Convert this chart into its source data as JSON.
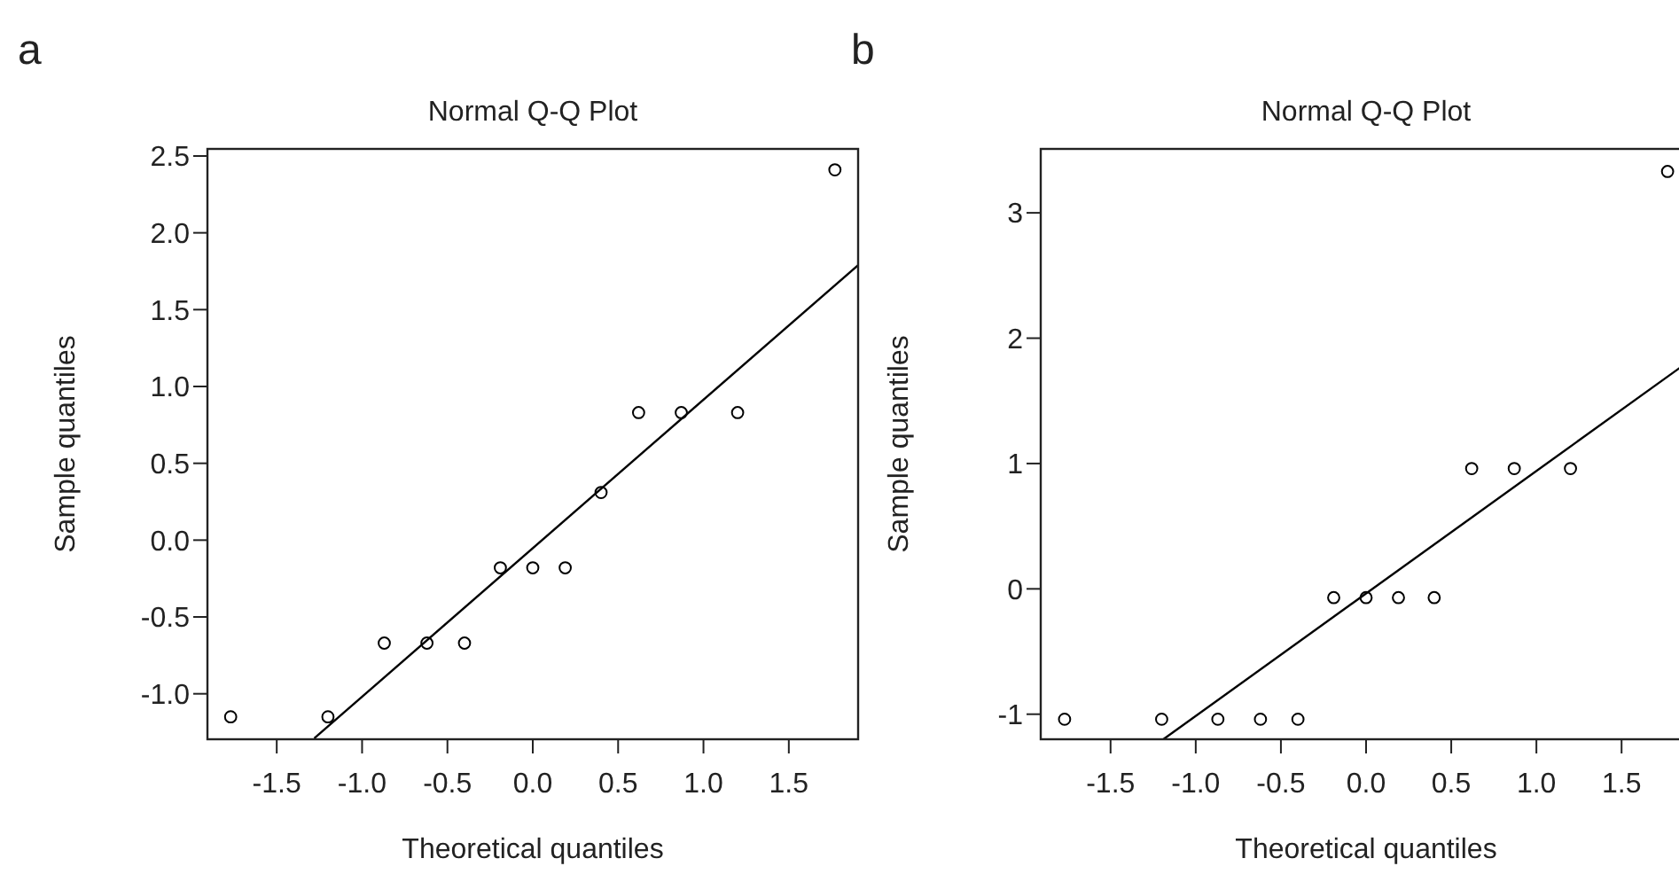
{
  "chart_data": [
    {
      "type": "scatter",
      "title": "Normal Q-Q Plot",
      "xlabel": "Theoretical quantiles",
      "ylabel": "Sample quantiles",
      "annotations": [
        "a"
      ],
      "grid": false,
      "marker": "circle",
      "xlim": [
        -1.906,
        1.906
      ],
      "ylim": [
        -1.296,
        2.546
      ],
      "xticks": [
        -1.5,
        {
          "value": -1,
          "label": "-1.0"
        },
        -0.5,
        {
          "value": 0,
          "label": "0.0"
        },
        0.5,
        {
          "value": 1,
          "label": "1.0"
        },
        1.5
      ],
      "yticks": [
        {
          "value": -1,
          "label": "-1.0"
        },
        -0.5,
        {
          "value": 0,
          "label": "0.0"
        },
        0.5,
        {
          "value": 1,
          "label": "1.0"
        },
        1.5,
        {
          "value": 2,
          "label": "2.0"
        },
        2.5
      ],
      "series": [
        {
          "color": "#000000",
          "x": [
            -1.77,
            -1.2,
            -0.87,
            -0.62,
            -0.4,
            -0.19,
            0,
            0.19,
            0.4,
            0.62,
            0.87,
            1.2,
            1.77
          ],
          "values": [
            -1.15,
            -1.15,
            -0.67,
            -0.67,
            -0.67,
            -0.18,
            -0.18,
            -0.18,
            0.31,
            0.83,
            0.83,
            0.83,
            2.41
          ]
        },
        {
          "type": "line",
          "color": "#000000",
          "line_style": "solid",
          "marker": "none",
          "x": [
            -1.28,
            1.906
          ],
          "values": [
            -1.29,
            1.79
          ]
        }
      ]
    },
    {
      "type": "scatter",
      "title": "Normal Q-Q Plot",
      "xlabel": "Theoretical quantiles",
      "ylabel": "Sample quantiles",
      "annotations": [
        "b"
      ],
      "grid": false,
      "marker": "circle",
      "xlim": [
        -1.91,
        1.91
      ],
      "ylim": [
        -1.2,
        3.51
      ],
      "xticks": [
        -1.5,
        {
          "value": -1,
          "label": "-1.0"
        },
        -0.5,
        {
          "value": 0,
          "label": "0.0"
        },
        0.5,
        {
          "value": 1,
          "label": "1.0"
        },
        1.5
      ],
      "yticks": [
        -1,
        0,
        1,
        2,
        3
      ],
      "series": [
        {
          "color": "#000000",
          "x": [
            -1.77,
            -1.2,
            -0.87,
            -0.62,
            -0.4,
            -0.19,
            0,
            0.19,
            0.4,
            0.62,
            0.87,
            1.2,
            1.77
          ],
          "values": [
            -1.04,
            -1.04,
            -1.04,
            -1.04,
            -1.04,
            -0.07,
            -0.07,
            -0.07,
            -0.07,
            0.96,
            0.96,
            0.96,
            3.33
          ]
        },
        {
          "type": "line",
          "color": "#000000",
          "line_style": "solid",
          "marker": "none",
          "x": [
            -1.19,
            1.91
          ],
          "values": [
            -1.2,
            1.83
          ]
        }
      ]
    }
  ]
}
